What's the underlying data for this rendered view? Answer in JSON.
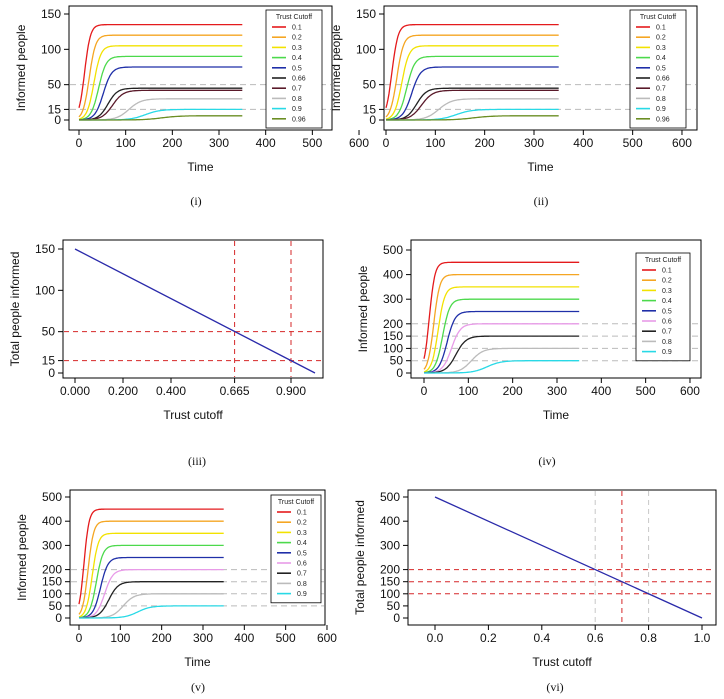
{
  "chart_data": [
    {
      "id": "p1",
      "type": "line",
      "caption": "(i)",
      "xlabel": "Time",
      "ylabel": "Informed people",
      "xlim": [
        0,
        600
      ],
      "ylim": [
        0,
        150
      ],
      "xticks": [
        "0",
        "100",
        "200",
        "300",
        "400",
        "500",
        "600"
      ],
      "yticks": [
        "0",
        "15",
        "50",
        "100",
        "150"
      ],
      "ref_lines": [
        15,
        50
      ],
      "legend_title": "Trust Cutoff",
      "series": [
        {
          "name": "0.1",
          "plateau": 135,
          "color": "#e41a1c"
        },
        {
          "name": "0.2",
          "plateau": 120,
          "color": "#f5a623"
        },
        {
          "name": "0.3",
          "plateau": 105,
          "color": "#f2e200"
        },
        {
          "name": "0.4",
          "plateau": 90,
          "color": "#4cd94c"
        },
        {
          "name": "0.5",
          "plateau": 75,
          "color": "#1f2fa8"
        },
        {
          "name": "0.66",
          "plateau": 45,
          "color": "#222222"
        },
        {
          "name": "0.7",
          "plateau": 42,
          "color": "#5a1a2a"
        },
        {
          "name": "0.8",
          "plateau": 30,
          "color": "#bbbbbb"
        },
        {
          "name": "0.9",
          "plateau": 15,
          "color": "#28d9e6"
        },
        {
          "name": "0.96",
          "plateau": 6,
          "color": "#6b8e23"
        }
      ]
    },
    {
      "id": "p2",
      "type": "line",
      "caption": "(ii)",
      "xlabel": "Time",
      "ylabel": "Informed people",
      "xlim": [
        0,
        600
      ],
      "ylim": [
        0,
        150
      ],
      "xticks": [
        "0",
        "100",
        "200",
        "300",
        "400",
        "500",
        "600"
      ],
      "yticks": [
        "0",
        "15",
        "50",
        "100",
        "150"
      ],
      "ref_lines": [
        15,
        50
      ],
      "legend_title": "Trust Cutoff",
      "series": [
        {
          "name": "0.1",
          "plateau": 135,
          "color": "#e41a1c"
        },
        {
          "name": "0.2",
          "plateau": 120,
          "color": "#f5a623"
        },
        {
          "name": "0.3",
          "plateau": 105,
          "color": "#f2e200"
        },
        {
          "name": "0.4",
          "plateau": 90,
          "color": "#4cd94c"
        },
        {
          "name": "0.5",
          "plateau": 75,
          "color": "#1f2fa8"
        },
        {
          "name": "0.66",
          "plateau": 45,
          "color": "#222222"
        },
        {
          "name": "0.7",
          "plateau": 42,
          "color": "#5a1a2a"
        },
        {
          "name": "0.8",
          "plateau": 30,
          "color": "#bbbbbb"
        },
        {
          "name": "0.9",
          "plateau": 15,
          "color": "#28d9e6"
        },
        {
          "name": "0.96",
          "plateau": 6,
          "color": "#6b8e23"
        }
      ]
    },
    {
      "id": "p3",
      "type": "line",
      "caption": "(iii)",
      "xlabel": "Trust cutoff",
      "ylabel": "Total people informed",
      "xlim": [
        -0.05,
        1.05
      ],
      "ylim": [
        0,
        150
      ],
      "xticks": [
        "0.000",
        "0.200",
        "0.400",
        "0.665",
        "0.900"
      ],
      "xtick_values": [
        0,
        0.2,
        0.4,
        0.665,
        0.9
      ],
      "yticks": [
        "0",
        "15",
        "50",
        "100",
        "150"
      ],
      "line": {
        "x": [
          0,
          1
        ],
        "y": [
          150,
          0
        ],
        "color": "#2a2aaa"
      },
      "hlines": [
        15,
        50
      ],
      "vlines": [
        0.665,
        0.9
      ]
    },
    {
      "id": "p4",
      "type": "line",
      "caption": "(iv)",
      "xlabel": "Time",
      "ylabel": "Informed people",
      "xlim": [
        0,
        600
      ],
      "ylim": [
        0,
        500
      ],
      "xticks": [
        "0",
        "100",
        "200",
        "300",
        "400",
        "500",
        "600"
      ],
      "yticks": [
        "0",
        "50",
        "100",
        "150",
        "200",
        "300",
        "400",
        "500"
      ],
      "ref_lines": [
        50,
        100,
        150,
        200
      ],
      "legend_title": "Trust Cutoff",
      "series": [
        {
          "name": "0.1",
          "plateau": 450,
          "color": "#e41a1c"
        },
        {
          "name": "0.2",
          "plateau": 400,
          "color": "#f5a623"
        },
        {
          "name": "0.3",
          "plateau": 350,
          "color": "#f2e200"
        },
        {
          "name": "0.4",
          "plateau": 300,
          "color": "#4cd94c"
        },
        {
          "name": "0.5",
          "plateau": 250,
          "color": "#1f2fa8"
        },
        {
          "name": "0.6",
          "plateau": 200,
          "color": "#e89be8"
        },
        {
          "name": "0.7",
          "plateau": 150,
          "color": "#222222"
        },
        {
          "name": "0.8",
          "plateau": 100,
          "color": "#bbbbbb"
        },
        {
          "name": "0.9",
          "plateau": 50,
          "color": "#28d9e6"
        }
      ]
    },
    {
      "id": "p5",
      "type": "line",
      "caption": "(v)",
      "xlabel": "Time",
      "ylabel": "Informed people",
      "xlim": [
        0,
        600
      ],
      "ylim": [
        0,
        500
      ],
      "xticks": [
        "0",
        "100",
        "200",
        "300",
        "400",
        "500",
        "600"
      ],
      "yticks": [
        "0",
        "50",
        "100",
        "150",
        "200",
        "300",
        "400",
        "500"
      ],
      "ref_lines": [
        50,
        100,
        150,
        200
      ],
      "legend_title": "Trust Cutoff",
      "series": [
        {
          "name": "0.1",
          "plateau": 450,
          "color": "#e41a1c"
        },
        {
          "name": "0.2",
          "plateau": 400,
          "color": "#f5a623"
        },
        {
          "name": "0.3",
          "plateau": 350,
          "color": "#f2e200"
        },
        {
          "name": "0.4",
          "plateau": 300,
          "color": "#4cd94c"
        },
        {
          "name": "0.5",
          "plateau": 250,
          "color": "#1f2fa8"
        },
        {
          "name": "0.6",
          "plateau": 200,
          "color": "#e89be8"
        },
        {
          "name": "0.7",
          "plateau": 150,
          "color": "#222222"
        },
        {
          "name": "0.8",
          "plateau": 100,
          "color": "#bbbbbb"
        },
        {
          "name": "0.9",
          "plateau": 50,
          "color": "#28d9e6"
        }
      ]
    },
    {
      "id": "p6",
      "type": "line",
      "caption": "(vi)",
      "xlabel": "Trust cutoff",
      "ylabel": "Total people informed",
      "xlim": [
        -0.05,
        1.05
      ],
      "ylim": [
        0,
        500
      ],
      "xticks": [
        "0.0",
        "0.2",
        "0.4",
        "0.6",
        "0.8",
        "1.0"
      ],
      "xtick_values": [
        0,
        0.2,
        0.4,
        0.6,
        0.8,
        1.0
      ],
      "yticks": [
        "0",
        "50",
        "100",
        "150",
        "200",
        "300",
        "400",
        "500"
      ],
      "line": {
        "x": [
          0,
          1
        ],
        "y": [
          500,
          0
        ],
        "color": "#2a2aaa"
      },
      "hlines": [
        100,
        150,
        200
      ],
      "vlines_red": [
        0.7
      ],
      "vlines_gray": [
        0.6,
        0.8
      ]
    }
  ]
}
